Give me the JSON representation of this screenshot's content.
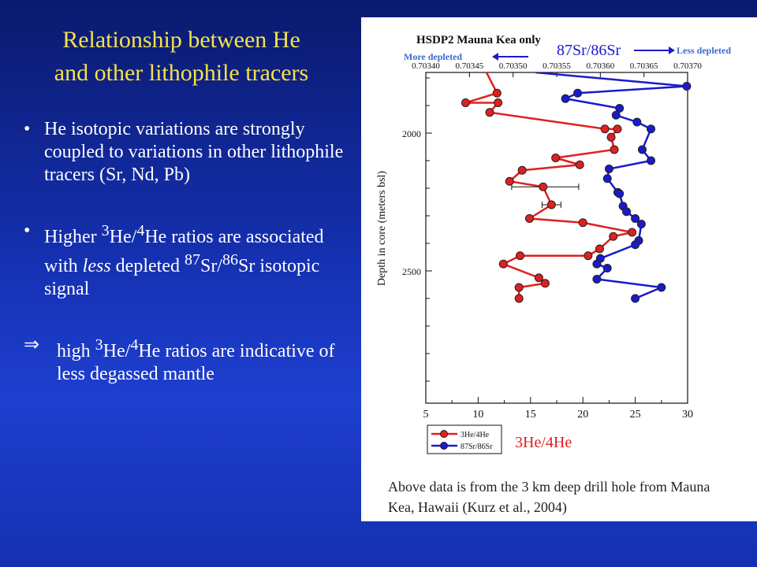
{
  "slide": {
    "title_line1": "Relationship between He",
    "title_line2": "and other lithophile tracers",
    "bullets": [
      {
        "marker": "•",
        "text": "He isotopic variations are strongly coupled to variations in other lithophile tracers (Sr, Nd, Pb)"
      },
      {
        "marker": "•",
        "parts": [
          "Higher ",
          "3",
          "He/",
          "4",
          "He ratios are associated with ",
          "less",
          " depleted ",
          "87",
          "Sr/",
          "86",
          "Sr isotopic signal"
        ]
      },
      {
        "marker": "⇒",
        "parts": [
          "high ",
          "3",
          "He/",
          "4",
          "He ratios are indicative of less degassed mantle"
        ]
      }
    ],
    "caption": "Above data is from the 3 km deep drill hole from Mauna Kea, Hawaii (Kurz et al., 2004)"
  },
  "chart_data": {
    "type": "line",
    "title": "HSDP2 Mauna Kea only",
    "sr_axis_label": "87Sr/86Sr",
    "more_depleted_label": "More depleted",
    "less_depleted_label": "Less depleted",
    "he_axis_label": "3He/4He",
    "ylabel": "Depth in core (meters bsl)",
    "ylim": [
      1780,
      2980
    ],
    "xlim_he": [
      5,
      30
    ],
    "xlim_sr": [
      0.7034,
      0.7037
    ],
    "he_ticks": [
      "5",
      "10",
      "15",
      "20",
      "25",
      "30"
    ],
    "sr_ticks": [
      "0.70340",
      "0.70345",
      "0.70350",
      "0.70355",
      "0.70360",
      "0.70365",
      "0.70370"
    ],
    "depth_ticks": [
      "2000",
      "2500"
    ],
    "legend": [
      "3He/4He",
      "87Sr/86Sr"
    ],
    "colors": {
      "he": "#e02020",
      "sr": "#1a1acc"
    },
    "series": [
      {
        "name": "3He/4He",
        "axis": "he",
        "points": [
          [
            10.8,
            1780
          ],
          [
            11.8,
            1855
          ],
          [
            8.8,
            1890
          ],
          [
            11.9,
            1890
          ],
          [
            11.1,
            1925
          ],
          [
            22.1,
            1985
          ],
          [
            23.3,
            1985
          ],
          [
            22.7,
            2015
          ],
          [
            23.0,
            2060
          ],
          [
            17.4,
            2090
          ],
          [
            19.7,
            2115
          ],
          [
            14.2,
            2135
          ],
          [
            13.0,
            2175
          ],
          [
            16.2,
            2195
          ],
          [
            17.0,
            2260
          ],
          [
            14.9,
            2310
          ],
          [
            20.0,
            2325
          ],
          [
            24.7,
            2360
          ],
          [
            22.9,
            2375
          ],
          [
            21.6,
            2420
          ],
          [
            20.5,
            2445
          ],
          [
            14.0,
            2445
          ],
          [
            12.4,
            2475
          ],
          [
            15.8,
            2525
          ],
          [
            16.4,
            2545
          ],
          [
            13.9,
            2560
          ],
          [
            13.9,
            2600
          ]
        ],
        "error_bars": [
          {
            "x": 16.2,
            "y": 2195,
            "xmin": 13.2,
            "xmax": 19.6
          },
          {
            "x": 17.0,
            "y": 2260,
            "xmin": 16.1,
            "xmax": 17.9
          }
        ]
      },
      {
        "name": "87Sr/86Sr",
        "axis": "sr",
        "points": [
          [
            0.703526,
            1780
          ],
          [
            0.703699,
            1830
          ],
          [
            0.703574,
            1855
          ],
          [
            0.70356,
            1875
          ],
          [
            0.703622,
            1910
          ],
          [
            0.703618,
            1935
          ],
          [
            0.703642,
            1960
          ],
          [
            0.703658,
            1985
          ],
          [
            0.703648,
            2060
          ],
          [
            0.703658,
            2100
          ],
          [
            0.70361,
            2130
          ],
          [
            0.703608,
            2165
          ],
          [
            0.70362,
            2215
          ],
          [
            0.703622,
            2220
          ],
          [
            0.703626,
            2265
          ],
          [
            0.70363,
            2285
          ],
          [
            0.70364,
            2310
          ],
          [
            0.703647,
            2330
          ],
          [
            0.703644,
            2390
          ],
          [
            0.70364,
            2405
          ],
          [
            0.7036,
            2455
          ],
          [
            0.703596,
            2475
          ],
          [
            0.703608,
            2490
          ],
          [
            0.703596,
            2530
          ],
          [
            0.70367,
            2560
          ],
          [
            0.70364,
            2600
          ]
        ]
      }
    ]
  }
}
